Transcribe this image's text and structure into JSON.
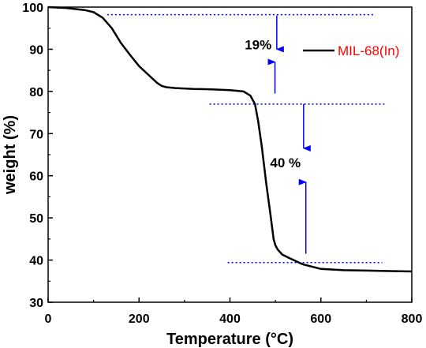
{
  "chart_data": {
    "type": "line",
    "xlabel": "Temperature (°C)",
    "ylabel": "weight (%)",
    "xlim": [
      0,
      800
    ],
    "ylim": [
      30,
      100
    ],
    "xticks": [
      0,
      200,
      400,
      600,
      800
    ],
    "xtick_labels": [
      "0",
      "200",
      "400",
      "600",
      "800"
    ],
    "yticks": [
      30,
      40,
      50,
      60,
      70,
      80,
      90,
      100
    ],
    "ytick_labels": [
      "30",
      "40",
      "50",
      "60",
      "70",
      "80",
      "90",
      "100"
    ],
    "grid": false,
    "legend_position": "top-right",
    "series": [
      {
        "name": "MIL-68(In)",
        "color": "#000000",
        "x": [
          0,
          40,
          80,
          100,
          120,
          140,
          160,
          180,
          200,
          220,
          240,
          250,
          260,
          280,
          320,
          360,
          400,
          430,
          445,
          455,
          462,
          470,
          480,
          490,
          496,
          500,
          505,
          515,
          530,
          560,
          600,
          650,
          700,
          750,
          800
        ],
        "y": [
          100,
          99.8,
          99.3,
          98.8,
          97.5,
          95,
          91.5,
          88.7,
          86,
          84,
          82,
          81.3,
          81,
          80.8,
          80.6,
          80.5,
          80.3,
          80,
          79,
          77,
          73,
          67,
          58,
          50,
          45,
          43.5,
          42.5,
          41.3,
          40.5,
          39,
          37.9,
          37.6,
          37.5,
          37.4,
          37.3
        ]
      }
    ],
    "annotations": [
      {
        "text": "19%",
        "x": 462,
        "y": 90
      },
      {
        "text": "40 %",
        "x": 522,
        "y": 62
      }
    ],
    "reference_lines": [
      {
        "y": 98.2,
        "x_from": 130,
        "x_to": 720
      },
      {
        "y": 77,
        "x_from": 355,
        "x_to": 740
      },
      {
        "y": 39.4,
        "x_from": 395,
        "x_to": 735
      }
    ],
    "arrows": [
      {
        "x": 503,
        "y_from": 98,
        "y_to": 90
      },
      {
        "x": 499,
        "y_from": 79.5,
        "y_to": 87
      },
      {
        "x": 562,
        "y_from": 77,
        "y_to": 66.5
      },
      {
        "x": 567,
        "y_from": 41.5,
        "y_to": 58.5
      }
    ],
    "colors": {
      "axis": "#000000",
      "reference": "#0000ff",
      "legend_text": "#ff0000"
    }
  }
}
